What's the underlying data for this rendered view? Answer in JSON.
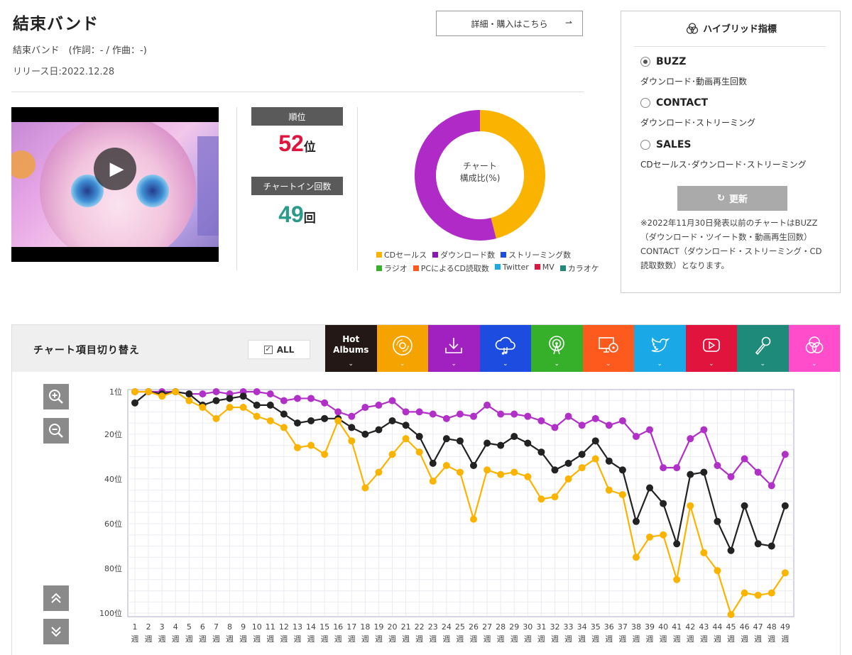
{
  "header": {
    "title": "結束バンド",
    "subtitle": "結束バンド　(作詞：- / 作曲：-)",
    "release": "リリース日:2022.12.28",
    "detail_button": "詳細・購入はこちら"
  },
  "rank": {
    "rank_label": "順位",
    "rank_value": "52",
    "rank_unit": "位",
    "chartin_label": "チャートイン回数",
    "chartin_value": "49",
    "chartin_unit": "回",
    "rank_color": "#e0143c",
    "chartin_color": "#2a9a8a"
  },
  "donut": {
    "center_line1": "チャート",
    "center_line2": "構成比(%)",
    "segments": [
      {
        "name": "CDセールス",
        "value": 46,
        "color": "#fab400"
      },
      {
        "name": "ダウンロード数",
        "value": 54,
        "color": "#b02ac8"
      }
    ],
    "legend_row1": [
      {
        "label": "CDセールス",
        "color": "#fab400"
      },
      {
        "label": "ダウンロード数",
        "color": "#8a16b6"
      },
      {
        "label": "ストリーミング数",
        "color": "#1c4de0"
      }
    ],
    "legend_row2": [
      {
        "label": "ラジオ",
        "color": "#36b02a"
      },
      {
        "label": "PCによるCD読取数",
        "color": "#ff5a1e"
      },
      {
        "label": "Twitter",
        "color": "#1aa8e6"
      },
      {
        "label": "MV",
        "color": "#e0143c"
      },
      {
        "label": "カラオケ",
        "color": "#1e8a7a"
      }
    ]
  },
  "hybrid": {
    "title": "ハイブリッド指標",
    "options": [
      {
        "label": "BUZZ",
        "desc": "ダウンロード･動画再生回数",
        "selected": true
      },
      {
        "label": "CONTACT",
        "desc": "ダウンロード･ストリーミング",
        "selected": false
      },
      {
        "label": "SALES",
        "desc": "CDセールス･ダウンロード･ストリーミング",
        "selected": false
      }
    ],
    "update_button": "更新",
    "note": "※2022年11月30日発表以前のチャートはBUZZ（ダウンロード・ツイート数・動画再生回数）CONTACT（ダウンロード・ストリーミング・CD読取数数）となります。"
  },
  "chart_switch": {
    "title": "チャート項目切り替え",
    "all_label": "ALL",
    "tabs": [
      {
        "label": "Hot Albums",
        "color": "#231815",
        "icon": "hot-albums"
      },
      {
        "label": "",
        "color": "#f5a300",
        "icon": "cd-icon"
      },
      {
        "label": "",
        "color": "#a020c0",
        "icon": "download-icon"
      },
      {
        "label": "",
        "color": "#1c4de0",
        "icon": "streaming-icon"
      },
      {
        "label": "",
        "color": "#36b02a",
        "icon": "radio-icon"
      },
      {
        "label": "",
        "color": "#ff5a1e",
        "icon": "pc-cd-icon"
      },
      {
        "label": "",
        "color": "#1aa8e6",
        "icon": "twitter-icon"
      },
      {
        "label": "",
        "color": "#e0143c",
        "icon": "mv-icon"
      },
      {
        "label": "",
        "color": "#1e8a7a",
        "icon": "karaoke-icon"
      },
      {
        "label": "",
        "color": "#ff4dcc",
        "icon": "hybrid-icon"
      }
    ]
  },
  "chart_data": {
    "type": "line",
    "x": [
      1,
      2,
      3,
      4,
      5,
      6,
      7,
      8,
      9,
      10,
      11,
      12,
      13,
      14,
      15,
      16,
      17,
      18,
      19,
      20,
      21,
      22,
      23,
      24,
      25,
      26,
      27,
      28,
      29,
      30,
      31,
      32,
      33,
      34,
      35,
      36,
      37,
      38,
      39,
      40,
      41,
      42,
      43,
      44,
      45,
      46,
      47,
      48,
      49
    ],
    "x_unit": "週",
    "y_tick_labels": [
      "1位",
      "20位",
      "40位",
      "60位",
      "80位",
      "100位"
    ],
    "y_ticks": [
      1,
      20,
      40,
      60,
      80,
      100
    ],
    "ylim": [
      1,
      100
    ],
    "y_inverted": true,
    "grid": true,
    "series": [
      {
        "color": "#b030c8",
        "values": [
          1,
          1,
          1,
          1,
          2,
          2,
          1,
          2,
          1,
          1,
          2,
          5,
          4,
          4,
          6,
          10,
          12,
          8,
          7,
          5,
          10,
          10,
          11,
          13,
          11,
          12,
          7,
          11,
          11,
          12,
          14,
          17,
          12,
          16,
          13,
          16,
          14,
          21,
          18,
          35,
          35,
          22,
          18,
          34,
          39,
          31,
          37,
          43,
          29
        ]
      },
      {
        "color": "#222222",
        "values": [
          6,
          1,
          2,
          1,
          2,
          7,
          5,
          4,
          3,
          7,
          7,
          11,
          15,
          14,
          13,
          13,
          17,
          20,
          18,
          14,
          16,
          21,
          33,
          22,
          23,
          34,
          24,
          25,
          21,
          24,
          28,
          36,
          33,
          29,
          23,
          32,
          36,
          59,
          44,
          51,
          69,
          38,
          37,
          59,
          72,
          52,
          69,
          70,
          52
        ]
      },
      {
        "color": "#fab400",
        "values": [
          1,
          1,
          3,
          1,
          5,
          8,
          13,
          8,
          8,
          12,
          14,
          17,
          26,
          25,
          29,
          14,
          23,
          44,
          37,
          29,
          22,
          28,
          41,
          34,
          37,
          58,
          36,
          38,
          37,
          39,
          49,
          48,
          40,
          35,
          31,
          45,
          47,
          75,
          66,
          65,
          85,
          52,
          73,
          81,
          101,
          91,
          92,
          91,
          82
        ]
      }
    ]
  }
}
